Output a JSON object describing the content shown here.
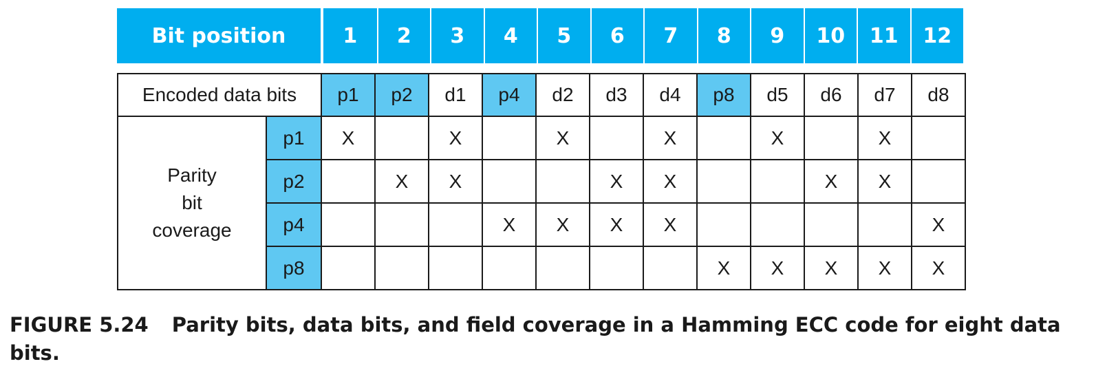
{
  "header": {
    "label": "Bit position",
    "positions": [
      "1",
      "2",
      "3",
      "4",
      "5",
      "6",
      "7",
      "8",
      "9",
      "10",
      "11",
      "12"
    ]
  },
  "encoded": {
    "label": "Encoded data bits",
    "bits": [
      "p1",
      "p2",
      "d1",
      "p4",
      "d2",
      "d3",
      "d4",
      "p8",
      "d5",
      "d6",
      "d7",
      "d8"
    ]
  },
  "coverage": {
    "label_lines": [
      "Parity",
      "bit",
      "coverage"
    ],
    "rows": [
      {
        "parity": "p1",
        "marks": [
          "X",
          "",
          "X",
          "",
          "X",
          "",
          "X",
          "",
          "X",
          "",
          "X",
          ""
        ]
      },
      {
        "parity": "p2",
        "marks": [
          "",
          "X",
          "X",
          "",
          "",
          "X",
          "X",
          "",
          "",
          "X",
          "X",
          ""
        ]
      },
      {
        "parity": "p4",
        "marks": [
          "",
          "",
          "",
          "X",
          "X",
          "X",
          "X",
          "",
          "",
          "",
          "",
          "X"
        ]
      },
      {
        "parity": "p8",
        "marks": [
          "",
          "",
          "",
          "",
          "",
          "",
          "",
          "X",
          "X",
          "X",
          "X",
          "X"
        ]
      }
    ]
  },
  "caption": {
    "figure": "FIGURE 5.24",
    "text": "Parity bits, data bits, and field coverage in a Hamming ECC code for eight data bits."
  },
  "colors": {
    "header_blue": "#00aeef",
    "highlight_blue": "#5fc8f2"
  }
}
